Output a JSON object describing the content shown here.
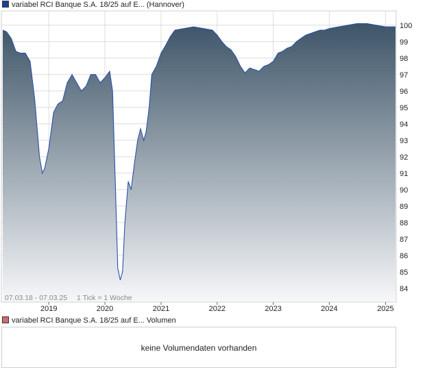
{
  "legend": {
    "price_label": "variabel RCI Banque S.A. 18/25 auf E... (Hannover)",
    "price_color": "#1f3f9e",
    "volume_label": "variabel RCI Banque S.A. 18/25 auf E... Volumen",
    "volume_color": "#d36b6b"
  },
  "info": {
    "range": "07.03.18 - 07.03.25",
    "tick": "1 Tick = 1 Woche"
  },
  "volume_panel": {
    "message": "keine Volumendaten vorhanden"
  },
  "colors": {
    "line": "#2b4fa8",
    "fill_top": "#3e5568",
    "fill_bottom": "#f6f7f9",
    "grid": "#dcdcdc",
    "axis": "#666666"
  },
  "chart_data": {
    "type": "area",
    "title": "",
    "xlabel": "",
    "ylabel": "",
    "grid": true,
    "xlim": [
      "2018-03-07",
      "2025-03-07"
    ],
    "ylim": [
      83.2,
      100.7
    ],
    "yticks": [
      "84",
      "85",
      "86",
      "87",
      "88",
      "89",
      "90",
      "91",
      "92",
      "93",
      "94",
      "95",
      "96",
      "97",
      "98",
      "99",
      "100"
    ],
    "xticks": [
      {
        "label": "2019",
        "date": "2019-01-01"
      },
      {
        "label": "2020",
        "date": "2020-01-01"
      },
      {
        "label": "2021",
        "date": "2021-01-01"
      },
      {
        "label": "2022",
        "date": "2022-01-01"
      },
      {
        "label": "2023",
        "date": "2023-01-01"
      },
      {
        "label": "2024",
        "date": "2024-01-01"
      },
      {
        "label": "2025",
        "date": "2025-01-01"
      }
    ],
    "series": [
      {
        "points": [
          [
            "2018-03-07",
            99.7
          ],
          [
            "2018-04-01",
            99.6
          ],
          [
            "2018-05-01",
            99.2
          ],
          [
            "2018-06-01",
            98.4
          ],
          [
            "2018-07-01",
            98.3
          ],
          [
            "2018-08-01",
            98.3
          ],
          [
            "2018-09-01",
            97.8
          ],
          [
            "2018-10-01",
            95.5
          ],
          [
            "2018-11-01",
            92.0
          ],
          [
            "2018-11-20",
            91.0
          ],
          [
            "2018-12-05",
            91.3
          ],
          [
            "2019-01-01",
            92.5
          ],
          [
            "2019-02-01",
            94.7
          ],
          [
            "2019-03-01",
            95.2
          ],
          [
            "2019-04-01",
            95.4
          ],
          [
            "2019-05-01",
            96.5
          ],
          [
            "2019-06-01",
            97.0
          ],
          [
            "2019-07-01",
            96.5
          ],
          [
            "2019-08-01",
            96.0
          ],
          [
            "2019-09-01",
            96.3
          ],
          [
            "2019-10-01",
            97.0
          ],
          [
            "2019-11-01",
            97.0
          ],
          [
            "2019-12-01",
            96.5
          ],
          [
            "2020-01-01",
            96.8
          ],
          [
            "2020-02-01",
            97.2
          ],
          [
            "2020-02-20",
            96.0
          ],
          [
            "2020-03-10",
            90.0
          ],
          [
            "2020-03-25",
            85.2
          ],
          [
            "2020-04-10",
            84.5
          ],
          [
            "2020-04-25",
            85.0
          ],
          [
            "2020-05-10",
            88.0
          ],
          [
            "2020-06-01",
            90.5
          ],
          [
            "2020-06-20",
            90.0
          ],
          [
            "2020-07-10",
            91.5
          ],
          [
            "2020-08-01",
            93.0
          ],
          [
            "2020-08-20",
            93.7
          ],
          [
            "2020-09-10",
            93.0
          ],
          [
            "2020-09-25",
            93.5
          ],
          [
            "2020-10-15",
            95.0
          ],
          [
            "2020-11-01",
            97.0
          ],
          [
            "2020-12-01",
            97.5
          ],
          [
            "2021-01-01",
            98.3
          ],
          [
            "2021-02-01",
            98.8
          ],
          [
            "2021-03-01",
            99.3
          ],
          [
            "2021-04-01",
            99.7
          ],
          [
            "2021-06-01",
            99.8
          ],
          [
            "2021-08-01",
            99.9
          ],
          [
            "2021-10-01",
            99.8
          ],
          [
            "2021-12-01",
            99.7
          ],
          [
            "2022-01-01",
            99.4
          ],
          [
            "2022-02-01",
            99.0
          ],
          [
            "2022-03-01",
            98.7
          ],
          [
            "2022-04-01",
            98.5
          ],
          [
            "2022-05-01",
            98.1
          ],
          [
            "2022-06-01",
            97.5
          ],
          [
            "2022-07-01",
            97.1
          ],
          [
            "2022-08-01",
            97.4
          ],
          [
            "2022-09-01",
            97.3
          ],
          [
            "2022-10-01",
            97.2
          ],
          [
            "2022-11-01",
            97.5
          ],
          [
            "2022-12-01",
            97.6
          ],
          [
            "2023-01-01",
            97.8
          ],
          [
            "2023-02-01",
            98.3
          ],
          [
            "2023-03-01",
            98.4
          ],
          [
            "2023-04-01",
            98.6
          ],
          [
            "2023-05-01",
            98.7
          ],
          [
            "2023-06-01",
            99.0
          ],
          [
            "2023-07-01",
            99.2
          ],
          [
            "2023-08-01",
            99.4
          ],
          [
            "2023-09-01",
            99.5
          ],
          [
            "2023-10-01",
            99.6
          ],
          [
            "2023-11-01",
            99.7
          ],
          [
            "2023-12-01",
            99.7
          ],
          [
            "2024-01-01",
            99.8
          ],
          [
            "2024-03-01",
            99.9
          ],
          [
            "2024-05-01",
            100.0
          ],
          [
            "2024-07-01",
            100.1
          ],
          [
            "2024-09-01",
            100.1
          ],
          [
            "2024-11-01",
            100.0
          ],
          [
            "2025-01-01",
            99.9
          ],
          [
            "2025-03-07",
            99.9
          ]
        ]
      }
    ]
  }
}
